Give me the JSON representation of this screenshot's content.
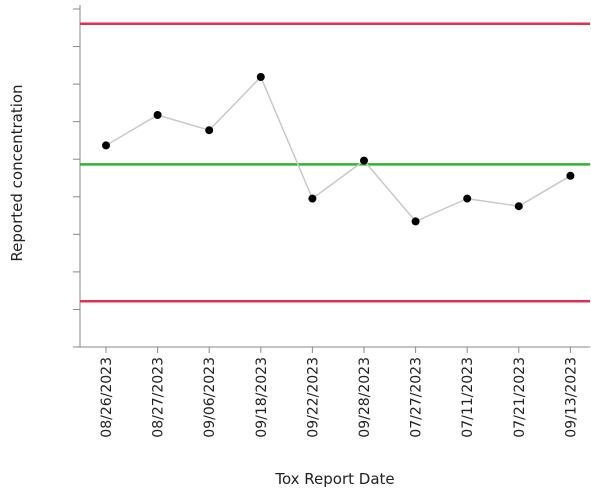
{
  "chart_data": {
    "type": "line",
    "xlabel": "Tox Report Date",
    "ylabel": "Reported concentration",
    "categories": [
      "08/26/2023",
      "08/27/2023",
      "09/06/2023",
      "09/18/2023",
      "09/22/2023",
      "09/28/2023",
      "07/27/2023",
      "07/11/2023",
      "07/21/2023",
      "09/13/2023"
    ],
    "values": [
      5.2,
      6.0,
      5.6,
      7.0,
      3.8,
      4.8,
      3.2,
      3.8,
      3.6,
      4.4
    ],
    "ylim": [
      0,
      9
    ],
    "y_tick_count": 10,
    "reference_lines": [
      {
        "role": "upper-limit",
        "value": 8.4,
        "color": "#e0304e"
      },
      {
        "role": "center-line",
        "value": 4.7,
        "color": "#2db52d"
      },
      {
        "role": "lower-limit",
        "value": 1.1,
        "color": "#e0304e"
      }
    ],
    "series_color": "#c8c8c8",
    "marker_color": "#000000",
    "y_tick_labels_shown": false,
    "grid": false
  }
}
